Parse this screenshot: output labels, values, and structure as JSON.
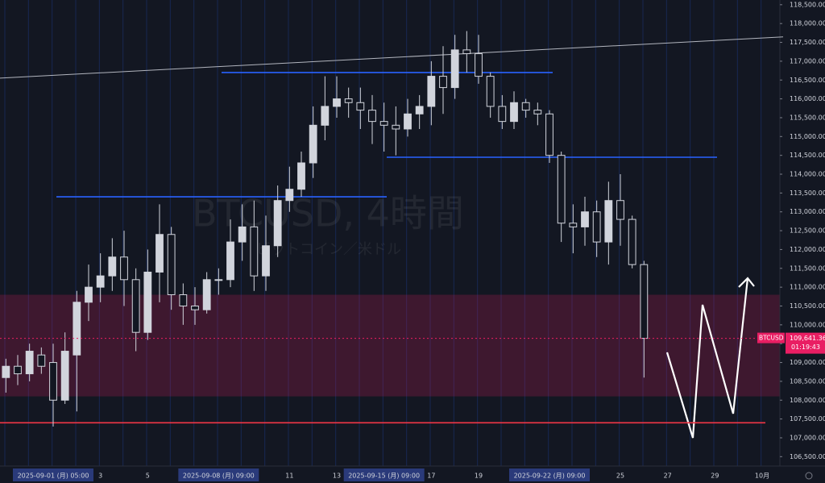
{
  "chart_data": {
    "type": "candlestick",
    "title": "BTCUSD, 4時間",
    "subtitle": "ビットコイン／米ドル",
    "symbol": "BTCUSD",
    "last_price": {
      "value": 109641.36,
      "label": "109,641.36"
    },
    "countdown": "01:19:43",
    "categories": [
      null,
      null,
      null,
      null,
      "2025-09-01 (月)  05:00",
      null,
      null,
      null,
      "3",
      null,
      null,
      null,
      "5",
      null,
      null,
      null,
      null,
      null,
      "2025-09-08 (月)  09:00",
      null,
      null,
      null,
      null,
      null,
      "11",
      null,
      null,
      null,
      "13",
      null,
      null,
      null,
      "2025-09-15 (月)  09:00",
      null,
      null,
      null,
      "17",
      null,
      null,
      null,
      "19",
      null,
      null,
      null,
      null,
      null,
      "2025-09-22 (月)  09:00",
      null,
      null,
      null,
      null,
      null,
      "25",
      null,
      null,
      null,
      "27",
      null,
      null,
      null,
      "29",
      null,
      null,
      null,
      "10月"
    ],
    "open": [
      108600,
      108900,
      108700,
      109200,
      109000,
      108000,
      109200,
      110600,
      111000,
      111300,
      111800,
      111200,
      109800,
      111400,
      112400,
      110800,
      110500,
      110400,
      111200,
      111200,
      112200,
      112600,
      111300,
      112100,
      113300,
      113600,
      114300,
      115300,
      115800,
      116000,
      115900,
      115700,
      115400,
      115300,
      115200,
      115600,
      115800,
      116600,
      116300,
      117300,
      117200,
      116600,
      115800,
      115400,
      115900,
      115700,
      115600,
      114500,
      112700,
      112600,
      113000,
      112200,
      113300,
      112800,
      111600,
      null,
      null,
      null,
      null,
      null,
      null,
      null,
      null,
      null,
      null
    ],
    "high": [
      109100,
      109200,
      109500,
      109400,
      109500,
      109800,
      110900,
      111600,
      111900,
      112300,
      112500,
      111500,
      112000,
      113200,
      112600,
      111100,
      111000,
      111400,
      111500,
      112800,
      113200,
      113300,
      112900,
      113700,
      114200,
      114600,
      115800,
      116600,
      116600,
      116300,
      116300,
      116100,
      115900,
      115800,
      116000,
      116100,
      117000,
      117400,
      117700,
      117800,
      117700,
      116700,
      116100,
      116200,
      116000,
      115900,
      115700,
      114600,
      113200,
      113400,
      113300,
      113800,
      114000,
      112900,
      111700,
      null,
      null,
      null,
      null,
      null,
      null,
      null,
      null,
      null,
      null
    ],
    "low": [
      108200,
      108400,
      108500,
      108700,
      107300,
      107900,
      107700,
      110100,
      110600,
      110900,
      110500,
      109300,
      109600,
      110600,
      110400,
      110000,
      110000,
      110300,
      110800,
      111000,
      111700,
      110900,
      110900,
      111800,
      113000,
      113400,
      113900,
      114900,
      115500,
      115500,
      115200,
      114800,
      114600,
      114500,
      115000,
      115200,
      115300,
      115600,
      116000,
      116700,
      116400,
      115500,
      115200,
      115200,
      115500,
      115300,
      114300,
      112200,
      111900,
      112100,
      111800,
      111600,
      112100,
      111500,
      108600,
      null,
      null,
      null,
      null,
      null,
      null,
      null,
      null,
      null,
      null
    ],
    "close": [
      108900,
      108700,
      109300,
      108900,
      108000,
      109300,
      110600,
      111000,
      111300,
      111800,
      111200,
      109800,
      111400,
      112400,
      110800,
      110500,
      110400,
      111200,
      111200,
      112200,
      112600,
      111300,
      112100,
      113300,
      113600,
      114300,
      115300,
      115800,
      116000,
      115900,
      115700,
      115400,
      115300,
      115200,
      115600,
      115800,
      116600,
      116300,
      117300,
      117200,
      116600,
      115800,
      115400,
      115900,
      115700,
      115600,
      114500,
      112700,
      112600,
      113000,
      112200,
      113300,
      112800,
      111600,
      109641.36,
      null,
      null,
      null,
      null,
      null,
      null,
      null,
      null,
      null,
      null
    ],
    "color": "#d1d4dc",
    "ylim": [
      106250,
      118625
    ],
    "yticks": [
      {
        "value": 106500,
        "label": "106,500.00"
      },
      {
        "value": 107000,
        "label": "107,000.00"
      },
      {
        "value": 107500,
        "label": "107,500.00"
      },
      {
        "value": 108000,
        "label": "108,000.00"
      },
      {
        "value": 108500,
        "label": "108,500.00"
      },
      {
        "value": 109000,
        "label": "109,000.00"
      },
      {
        "value": 109500,
        "label": "109,500.00"
      },
      {
        "value": 110000,
        "label": "110,000.00"
      },
      {
        "value": 110500,
        "label": "110,500.00"
      },
      {
        "value": 111000,
        "label": "111,000.00"
      },
      {
        "value": 111500,
        "label": "111,500.00"
      },
      {
        "value": 112000,
        "label": "112,000.00"
      },
      {
        "value": 112500,
        "label": "112,500.00"
      },
      {
        "value": 113000,
        "label": "113,000.00"
      },
      {
        "value": 113500,
        "label": "113,500.00"
      },
      {
        "value": 114000,
        "label": "114,000.00"
      },
      {
        "value": 114500,
        "label": "114,500.00"
      },
      {
        "value": 115000,
        "label": "115,000.00"
      },
      {
        "value": 115500,
        "label": "115,500.00"
      },
      {
        "value": 116000,
        "label": "116,000.00"
      },
      {
        "value": 116500,
        "label": "116,500.00"
      },
      {
        "value": 117000,
        "label": "117,000.00"
      },
      {
        "value": 117500,
        "label": "117,500.00"
      },
      {
        "value": 118000,
        "label": "118,000.00"
      },
      {
        "value": 118500,
        "label": "118,500.00"
      }
    ],
    "zone": {
      "from": 108100,
      "to": 110800,
      "color": "#e91e63"
    },
    "levels": [
      {
        "value": 116700,
        "color": "#2962ff"
      },
      {
        "value": 114450,
        "color": "#2962ff"
      },
      {
        "value": 113400,
        "color": "#2962ff"
      },
      {
        "value": 107400,
        "color": "#f23645"
      }
    ],
    "trendline": [
      116550,
      117645
    ]
  }
}
